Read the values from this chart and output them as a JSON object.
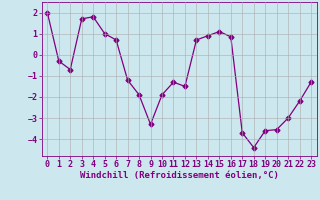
{
  "x": [
    0,
    1,
    2,
    3,
    4,
    5,
    6,
    7,
    8,
    9,
    10,
    11,
    12,
    13,
    14,
    15,
    16,
    17,
    18,
    19,
    20,
    21,
    22,
    23
  ],
  "y": [
    2,
    -0.3,
    -0.7,
    1.7,
    1.8,
    1.0,
    0.7,
    -1.2,
    -1.9,
    -3.3,
    -1.9,
    -1.3,
    -1.5,
    0.7,
    0.9,
    1.1,
    0.85,
    -3.7,
    -4.4,
    -3.6,
    -3.55,
    -3.0,
    -2.2,
    -1.3
  ],
  "line_color": "#800080",
  "marker": "D",
  "marker_size": 2.5,
  "bg_color": "#cce8ee",
  "grid_color": "#aaaaaa",
  "xlabel": "Windchill (Refroidissement éolien,°C)",
  "xlabel_fontsize": 6.5,
  "tick_fontsize": 6.0,
  "ylim": [
    -4.8,
    2.5
  ],
  "xlim": [
    -0.5,
    23.5
  ],
  "yticks": [
    2,
    1,
    0,
    -1,
    -2,
    -3,
    -4
  ],
  "xticks": [
    0,
    1,
    2,
    3,
    4,
    5,
    6,
    7,
    8,
    9,
    10,
    11,
    12,
    13,
    14,
    15,
    16,
    17,
    18,
    19,
    20,
    21,
    22,
    23
  ]
}
